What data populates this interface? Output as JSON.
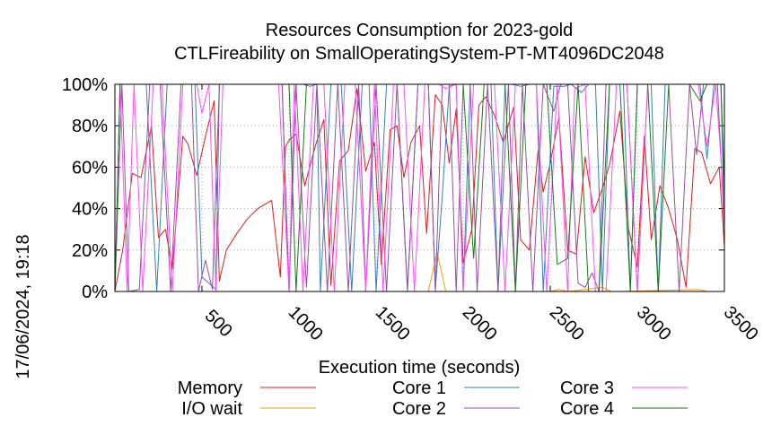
{
  "chart_data": {
    "type": "line",
    "title": "Resources Consumption for 2023-gold",
    "subtitle": "CTLFireability on SmallOperatingSystem-PT-MT4096DC2048",
    "xlabel": "Execution time (seconds)",
    "ylabel": "",
    "side_label": "17/06/2024, 19:18",
    "xlim": [
      0,
      3500
    ],
    "ylim": [
      0,
      100
    ],
    "x_ticks": [
      500,
      1000,
      1500,
      2000,
      2500,
      3000,
      3500
    ],
    "y_ticks": [
      "0%",
      "20%",
      "40%",
      "60%",
      "80%",
      "100%"
    ],
    "grid": true,
    "legend_position": "bottom",
    "series": [
      {
        "name": "Memory",
        "color": "#e41a1c",
        "x": [
          0,
          45,
          100,
          150,
          210,
          250,
          290,
          330,
          390,
          420,
          470,
          520,
          570,
          600,
          640,
          700,
          760,
          820,
          900,
          950,
          980,
          1000,
          1040,
          1090,
          1150,
          1200,
          1240,
          1290,
          1340,
          1390,
          1440,
          1490,
          1530,
          1580,
          1620,
          1660,
          1700,
          1750,
          1790,
          1840,
          1880,
          1920,
          1960,
          2000,
          2050,
          2090,
          2130,
          2180,
          2230,
          2290,
          2330,
          2380,
          2430,
          2460,
          2500,
          2550,
          2600,
          2650,
          2700,
          2750,
          2800,
          2840,
          2900,
          2950,
          3000,
          3040,
          3080,
          3130,
          3180,
          3230,
          3280,
          3330,
          3370,
          3420,
          3470,
          3500
        ],
        "y": [
          0,
          20,
          57,
          55,
          80,
          26,
          30,
          11,
          75,
          71,
          56,
          75,
          92,
          5,
          20,
          28,
          35,
          40,
          44,
          7,
          70,
          73,
          76,
          51,
          70,
          83,
          3,
          63,
          68,
          98,
          58,
          72,
          13,
          78,
          80,
          55,
          72,
          80,
          28,
          95,
          90,
          62,
          88,
          14,
          30,
          90,
          94,
          85,
          72,
          89,
          25,
          20,
          68,
          48,
          62,
          84,
          20,
          18,
          65,
          38,
          50,
          61,
          87,
          30,
          12,
          75,
          25,
          51,
          40,
          25,
          2,
          69,
          67,
          52,
          60,
          22
        ]
      },
      {
        "name": "I/O wait",
        "color": "#ff9f00",
        "x": [
          0,
          1000,
          1500,
          1800,
          1850,
          1900,
          2000,
          2500,
          2550,
          2600,
          2800,
          2850,
          2900,
          3350,
          3400,
          3500
        ],
        "y": [
          0,
          0,
          0,
          0,
          19,
          0,
          0,
          0,
          1,
          0,
          2,
          0,
          0,
          1,
          0,
          0
        ]
      },
      {
        "name": "Core 1",
        "color": "#377eb8",
        "x": [
          0,
          30,
          60,
          120,
          180,
          240,
          300,
          360,
          420,
          460,
          500,
          540,
          580,
          600,
          640,
          700,
          760,
          880,
          960,
          1000,
          1040,
          1080,
          1120,
          1160,
          1180,
          1240,
          1300,
          1360,
          1420,
          1460,
          1500,
          1560,
          1620,
          1680,
          1740,
          1800,
          1840,
          1880,
          1920,
          1960,
          2000,
          2040,
          2080,
          2120,
          2160,
          2200,
          2240,
          2280,
          2330,
          2380,
          2420,
          2460,
          2520,
          2580,
          2620,
          2680,
          2720,
          2760,
          2800,
          2840,
          2880,
          2920,
          2960,
          3000,
          3040,
          3080,
          3120,
          3160,
          3200,
          3240,
          3280,
          3320,
          3360,
          3400,
          3440,
          3480,
          3500
        ],
        "y": [
          0,
          100,
          100,
          100,
          100,
          0,
          100,
          100,
          100,
          100,
          7,
          4,
          1,
          100,
          100,
          100,
          100,
          100,
          100,
          0,
          100,
          100,
          99,
          100,
          0,
          100,
          100,
          0,
          100,
          100,
          0,
          100,
          100,
          0,
          100,
          100,
          1,
          46,
          99,
          100,
          0,
          100,
          100,
          100,
          100,
          0,
          100,
          100,
          99,
          100,
          100,
          0,
          99,
          99,
          100,
          96,
          100,
          100,
          0,
          100,
          100,
          100,
          0,
          100,
          100,
          100,
          0,
          100,
          100,
          100,
          100,
          100,
          100,
          64,
          100,
          100,
          32
        ]
      },
      {
        "name": "Core 2",
        "color": "#984ea3",
        "x": [
          0,
          40,
          80,
          140,
          200,
          260,
          320,
          380,
          440,
          480,
          520,
          560,
          600,
          640,
          700,
          760,
          820,
          880,
          960,
          1000,
          1040,
          1100,
          1160,
          1220,
          1280,
          1340,
          1400,
          1440,
          1500,
          1560,
          1620,
          1680,
          1740,
          1800,
          1840,
          1880,
          1920,
          1960,
          2000,
          2040,
          2080,
          2140,
          2200,
          2260,
          2300,
          2340,
          2400,
          2460,
          2520,
          2560,
          2600,
          2660,
          2700,
          2740,
          2780,
          2820,
          2880,
          2940,
          3000,
          3060,
          3120,
          3180,
          3240,
          3300,
          3340,
          3380,
          3420,
          3460,
          3500
        ],
        "y": [
          0,
          100,
          0,
          1,
          100,
          100,
          0,
          100,
          100,
          0,
          15,
          1,
          100,
          100,
          100,
          100,
          100,
          100,
          100,
          0,
          100,
          2,
          100,
          0,
          100,
          0,
          100,
          0,
          100,
          0,
          100,
          1,
          100,
          100,
          0,
          100,
          100,
          0,
          100,
          100,
          0,
          100,
          0,
          100,
          0,
          100,
          0,
          100,
          87,
          100,
          100,
          4,
          2,
          9,
          0,
          100,
          100,
          100,
          0,
          100,
          100,
          100,
          0,
          100,
          66,
          100,
          100,
          100,
          30
        ]
      },
      {
        "name": "Core 3",
        "color": "#ff4dff",
        "x": [
          0,
          30,
          70,
          110,
          160,
          220,
          270,
          330,
          390,
          440,
          470,
          500,
          540,
          580,
          620,
          680,
          740,
          800,
          870,
          940,
          1000,
          1030,
          1080,
          1140,
          1200,
          1260,
          1320,
          1380,
          1440,
          1490,
          1540,
          1600,
          1660,
          1720,
          1780,
          1830,
          1860,
          1900,
          1960,
          2000,
          2060,
          2120,
          2180,
          2240,
          2300,
          2360,
          2420,
          2480,
          2540,
          2600,
          2640,
          2700,
          2760,
          2820,
          2880,
          2940,
          3000,
          3060,
          3120,
          3180,
          3240,
          3300,
          3350,
          3400,
          3450,
          3500
        ],
        "y": [
          0,
          100,
          0,
          100,
          0,
          100,
          100,
          0,
          100,
          100,
          100,
          86,
          100,
          0,
          100,
          100,
          100,
          100,
          100,
          100,
          0,
          100,
          0,
          100,
          100,
          0,
          100,
          100,
          0,
          100,
          0,
          100,
          100,
          0,
          100,
          100,
          100,
          98,
          100,
          0,
          100,
          100,
          100,
          0,
          100,
          100,
          100,
          0,
          100,
          0,
          98,
          100,
          0,
          0,
          100,
          100,
          0,
          100,
          100,
          100,
          100,
          100,
          100,
          70,
          100,
          40
        ]
      },
      {
        "name": "Core 4",
        "color": "#1a7a1a",
        "x": [
          0,
          30,
          60,
          120,
          180,
          240,
          300,
          360,
          420,
          480,
          540,
          600,
          680,
          760,
          840,
          920,
          980,
          1000,
          1040,
          1100,
          1160,
          1220,
          1280,
          1340,
          1400,
          1460,
          1500,
          1560,
          1620,
          1680,
          1740,
          1800,
          1860,
          1920,
          2000,
          2060,
          2120,
          2180,
          2240,
          2300,
          2360,
          2420,
          2480,
          2540,
          2600,
          2660,
          2720,
          2780,
          2840,
          2900,
          2960,
          3000,
          3060,
          3120,
          3180,
          3240,
          3300,
          3360,
          3400,
          3440,
          3480,
          3500
        ],
        "y": [
          0,
          100,
          100,
          100,
          100,
          100,
          100,
          100,
          100,
          100,
          100,
          100,
          100,
          100,
          100,
          100,
          100,
          100,
          0,
          100,
          100,
          100,
          100,
          100,
          100,
          100,
          100,
          100,
          100,
          100,
          100,
          100,
          100,
          100,
          100,
          16,
          100,
          100,
          100,
          0,
          100,
          100,
          100,
          13,
          16,
          100,
          0,
          0,
          100,
          100,
          0,
          100,
          100,
          0,
          100,
          100,
          100,
          92,
          100,
          100,
          100,
          50
        ]
      }
    ]
  }
}
